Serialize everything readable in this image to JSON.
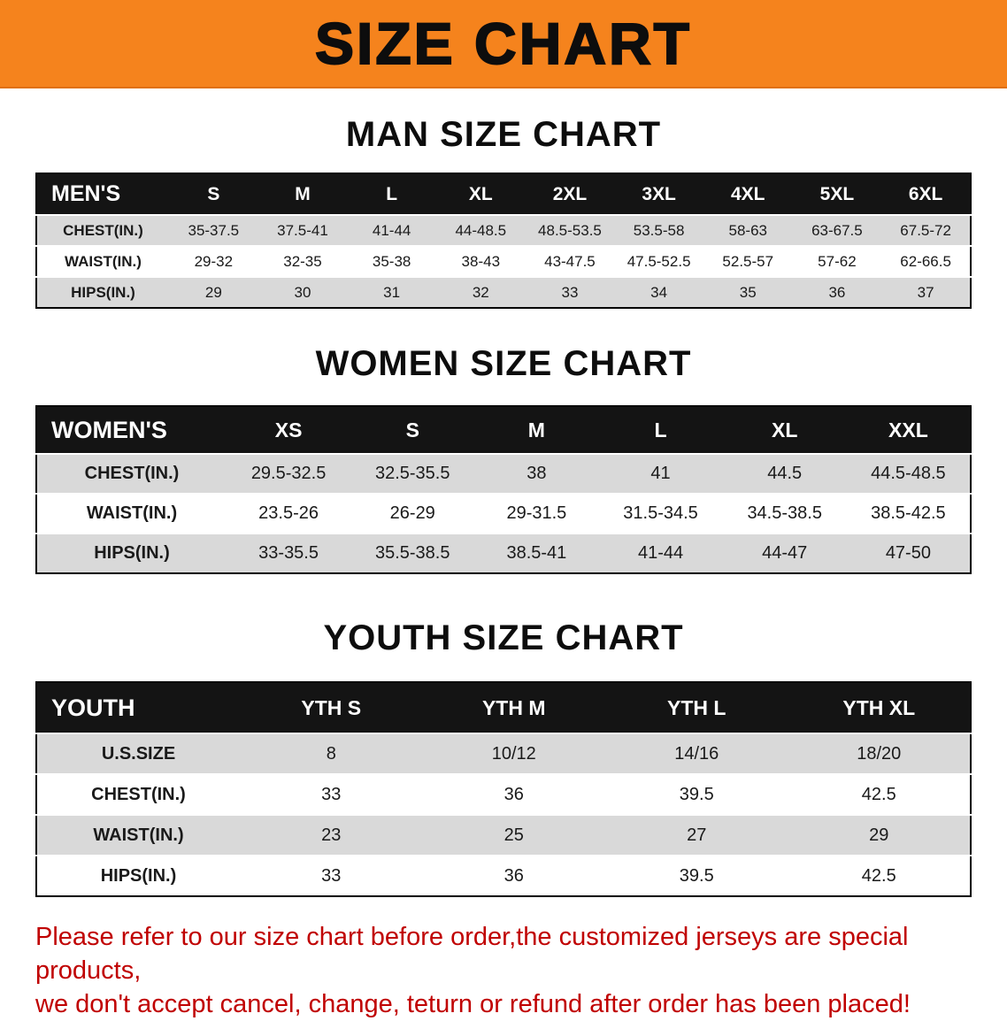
{
  "page_title": "SIZE CHART",
  "colors": {
    "banner_bg": "#f5831d",
    "header_bg": "#141414",
    "row_alt_bg": "#d9d9d9",
    "disclaimer_color": "#c00000",
    "border_color": "#000000"
  },
  "chart_data": [
    {
      "type": "table",
      "title": "MAN SIZE CHART",
      "columns": [
        "MEN'S",
        "S",
        "M",
        "L",
        "XL",
        "2XL",
        "3XL",
        "4XL",
        "5XL",
        "6XL"
      ],
      "rows": [
        [
          "CHEST(IN.)",
          "35-37.5",
          "37.5-41",
          "41-44",
          "44-48.5",
          "48.5-53.5",
          "53.5-58",
          "58-63",
          "63-67.5",
          "67.5-72"
        ],
        [
          "WAIST(IN.)",
          "29-32",
          "32-35",
          "35-38",
          "38-43",
          "43-47.5",
          "47.5-52.5",
          "52.5-57",
          "57-62",
          "62-66.5"
        ],
        [
          "HIPS(IN.)",
          "29",
          "30",
          "31",
          "32",
          "33",
          "34",
          "35",
          "36",
          "37"
        ]
      ]
    },
    {
      "type": "table",
      "title": "WOMEN SIZE CHART",
      "columns": [
        "WOMEN'S",
        "XS",
        "S",
        "M",
        "L",
        "XL",
        "XXL"
      ],
      "rows": [
        [
          "CHEST(IN.)",
          "29.5-32.5",
          "32.5-35.5",
          "38",
          "41",
          "44.5",
          "44.5-48.5"
        ],
        [
          "WAIST(IN.)",
          "23.5-26",
          "26-29",
          "29-31.5",
          "31.5-34.5",
          "34.5-38.5",
          "38.5-42.5"
        ],
        [
          "HIPS(IN.)",
          "33-35.5",
          "35.5-38.5",
          "38.5-41",
          "41-44",
          "44-47",
          "47-50"
        ]
      ]
    },
    {
      "type": "table",
      "title": "YOUTH SIZE CHART",
      "columns": [
        "YOUTH",
        "YTH S",
        "YTH M",
        "YTH L",
        "YTH XL"
      ],
      "rows": [
        [
          "U.S.SIZE",
          "8",
          "10/12",
          "14/16",
          "18/20"
        ],
        [
          "CHEST(IN.)",
          "33",
          "36",
          "39.5",
          "42.5"
        ],
        [
          "WAIST(IN.)",
          "23",
          "25",
          "27",
          "29"
        ],
        [
          "HIPS(IN.)",
          "33",
          "36",
          "39.5",
          "42.5"
        ]
      ]
    }
  ],
  "disclaimer": {
    "lines": [
      "Please refer to our size chart before order,the customized jerseys are special products,",
      "we don't accept cancel, change, teturn or refund after order has been placed!"
    ]
  }
}
